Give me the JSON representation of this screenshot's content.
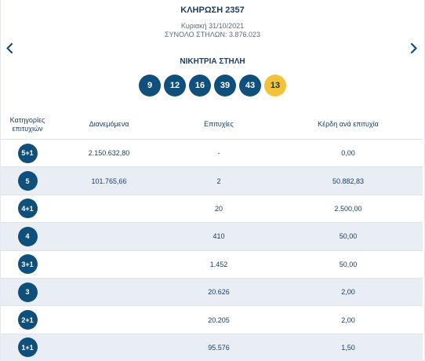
{
  "draw": {
    "title": "ΚΛΗΡΩΣΗ 2357",
    "date": "Κυριακή 31/10/2021",
    "columns": "ΣΥΝΟΛΟ ΣΤΗΛΩΝ: 3.876.023"
  },
  "winning": {
    "label": "ΝΙΚΗΤΡΙΑ ΣΤΗΛΗ",
    "numbers": [
      "9",
      "12",
      "16",
      "39",
      "43"
    ],
    "bonus": "13"
  },
  "table": {
    "headers": {
      "category": "Κατηγορίες επιτυχιών",
      "distributed": "Διανεμόμενα",
      "winners": "Επιτυχίες",
      "prize": "Κέρδη ανά επιτυχία"
    },
    "rows": [
      {
        "category": "5+1",
        "distributed": "2.150.632,80",
        "winners": "-",
        "prize": "0,00"
      },
      {
        "category": "5",
        "distributed": "101.765,66",
        "winners": "2",
        "prize": "50.882,83"
      },
      {
        "category": "4+1",
        "distributed": "",
        "winners": "20",
        "prize": "2.500,00"
      },
      {
        "category": "4",
        "distributed": "",
        "winners": "410",
        "prize": "50,00"
      },
      {
        "category": "3+1",
        "distributed": "",
        "winners": "1.452",
        "prize": "50,00"
      },
      {
        "category": "3",
        "distributed": "",
        "winners": "20.626",
        "prize": "2,00"
      },
      {
        "category": "2+1",
        "distributed": "",
        "winners": "20.205",
        "prize": "2,00"
      },
      {
        "category": "1+1",
        "distributed": "",
        "winners": "95.576",
        "prize": "1,50"
      }
    ]
  },
  "icons": {
    "prev": "chevron-left-icon",
    "next": "chevron-right-icon"
  },
  "colors": {
    "ball": "#0f4f7c",
    "bonus_ball": "#f3c13a",
    "text": "#1b3d66",
    "alt_row": "#e9eef5"
  }
}
